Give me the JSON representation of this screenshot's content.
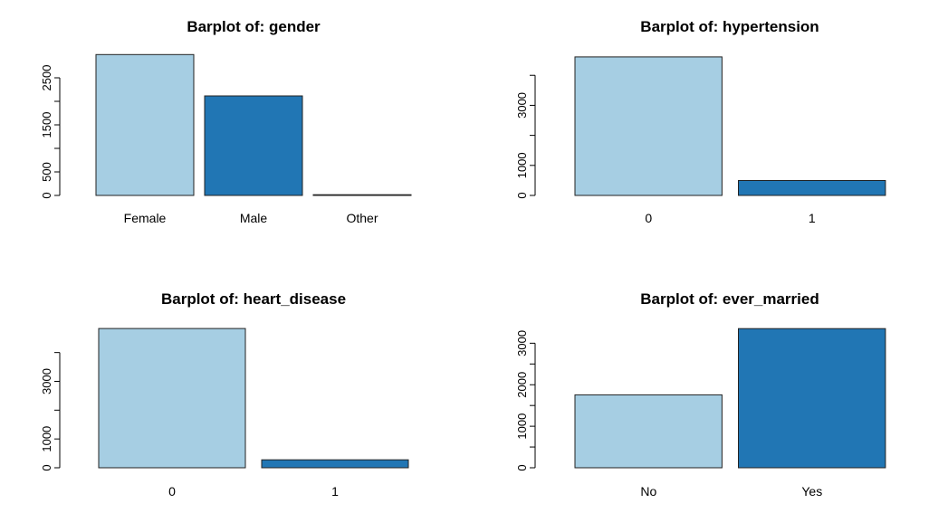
{
  "colors": {
    "light": "#a6cee3",
    "dark": "#2176b4",
    "axis": "#000000"
  },
  "chart_data": [
    {
      "type": "bar",
      "title": "Barplot of: gender",
      "categories": [
        "Female",
        "Male",
        "Other"
      ],
      "values": [
        2994,
        2115,
        1
      ],
      "yticks": [
        0,
        500,
        1500,
        2500
      ],
      "yminor": [
        1000,
        2000
      ],
      "ylim": [
        0,
        3000
      ],
      "bar_colors": [
        "light",
        "dark",
        "light"
      ]
    },
    {
      "type": "bar",
      "title": "Barplot of: hypertension",
      "categories": [
        "0",
        "1"
      ],
      "values": [
        4612,
        498
      ],
      "yticks": [
        0,
        1000,
        3000
      ],
      "yminor": [
        2000,
        4000
      ],
      "ylim": [
        0,
        4700
      ],
      "bar_colors": [
        "light",
        "dark"
      ]
    },
    {
      "type": "bar",
      "title": "Barplot of: heart_disease",
      "categories": [
        "0",
        "1"
      ],
      "values": [
        4834,
        276
      ],
      "yticks": [
        0,
        1000,
        3000
      ],
      "yminor": [
        2000,
        4000
      ],
      "ylim": [
        0,
        4900
      ],
      "bar_colors": [
        "light",
        "dark"
      ]
    },
    {
      "type": "bar",
      "title": "Barplot of: ever_married",
      "categories": [
        "No",
        "Yes"
      ],
      "values": [
        1757,
        3353
      ],
      "yticks": [
        0,
        1000,
        2000,
        3000
      ],
      "yminor": [
        500,
        1500,
        2500
      ],
      "ylim": [
        0,
        3400
      ],
      "bar_colors": [
        "light",
        "dark"
      ]
    }
  ]
}
